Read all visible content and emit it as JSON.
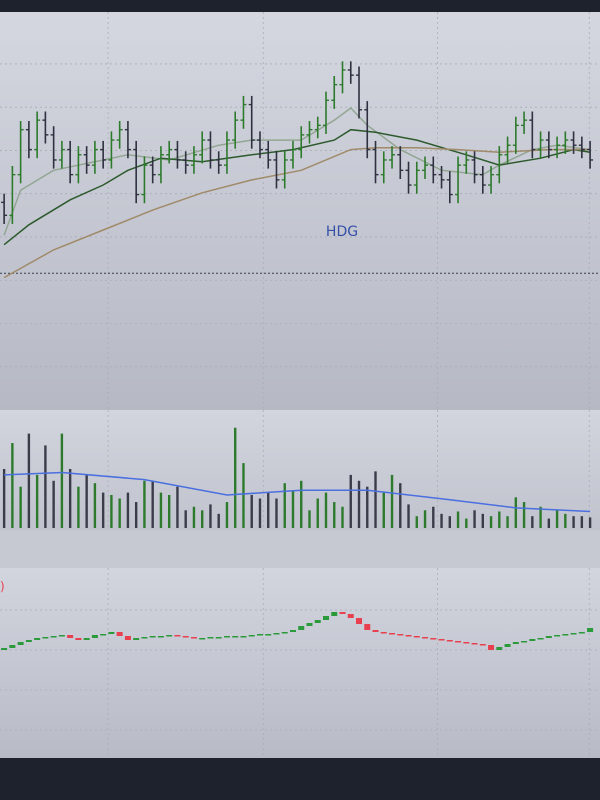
{
  "chart_data": [
    {
      "type": "ohlc",
      "annotation": "HDG",
      "xlim": [
        -0.5,
        72.2
      ],
      "ylim": [
        0,
        46
      ],
      "yticks": [
        5,
        10,
        15,
        20,
        25,
        30,
        35,
        40
      ],
      "xticks": [
        12.6,
        31.4,
        52.5,
        70.9
      ],
      "grid": true,
      "up_color": "#2d7a2d",
      "down_color": "#2f3140",
      "reference_line": 15.8,
      "reference_color": "#3a3d4a",
      "open": [
        24.0,
        22.5,
        27.2,
        32.4,
        30.1,
        33.5,
        31.8,
        28.9,
        30.1,
        27.2,
        29.5,
        28.3,
        30.1,
        28.9,
        31.2,
        32.4,
        30.1,
        24.9,
        28.3,
        27.2,
        29.5,
        30.1,
        28.9,
        28.3,
        29.5,
        31.2,
        28.9,
        28.3,
        31.2,
        33.5,
        35.3,
        31.2,
        30.1,
        28.9,
        26.6,
        28.9,
        30.1,
        31.8,
        32.4,
        32.9,
        35.8,
        37.6,
        39.3,
        38.7,
        34.7,
        30.1,
        27.2,
        28.9,
        29.5,
        27.7,
        26.0,
        27.7,
        28.3,
        27.2,
        26.6,
        24.9,
        28.3,
        28.9,
        27.2,
        26.0,
        27.2,
        29.5,
        30.6,
        32.9,
        33.5,
        30.1,
        31.2,
        30.1,
        30.6,
        31.2,
        30.6,
        30.1
      ],
      "high": [
        25.0,
        28.2,
        33.4,
        33.4,
        34.5,
        34.5,
        32.8,
        31.1,
        31.1,
        30.5,
        30.5,
        31.1,
        31.1,
        32.2,
        33.4,
        33.4,
        31.1,
        29.3,
        29.3,
        30.5,
        31.1,
        31.1,
        29.9,
        30.5,
        32.2,
        32.2,
        29.9,
        32.2,
        34.5,
        36.3,
        36.3,
        32.2,
        31.1,
        29.9,
        29.9,
        31.1,
        32.8,
        33.4,
        33.9,
        36.8,
        38.6,
        40.3,
        40.3,
        39.7,
        35.7,
        31.1,
        29.9,
        30.5,
        30.5,
        28.7,
        28.7,
        29.3,
        29.3,
        28.2,
        27.6,
        29.3,
        29.9,
        29.9,
        28.2,
        28.2,
        30.5,
        31.6,
        33.9,
        34.5,
        34.5,
        32.2,
        32.2,
        31.6,
        32.2,
        32.2,
        31.6,
        31.1
      ],
      "low": [
        21.5,
        21.5,
        26.2,
        29.1,
        29.1,
        30.8,
        27.9,
        27.9,
        26.2,
        26.2,
        27.3,
        27.3,
        27.9,
        27.9,
        30.2,
        29.1,
        23.9,
        23.9,
        26.2,
        26.2,
        28.5,
        27.9,
        27.3,
        27.3,
        28.5,
        27.9,
        27.3,
        27.3,
        30.2,
        32.5,
        30.2,
        29.1,
        27.9,
        25.6,
        25.6,
        27.9,
        29.1,
        30.8,
        31.4,
        31.9,
        34.8,
        36.6,
        37.7,
        33.7,
        29.1,
        26.2,
        26.2,
        27.9,
        26.7,
        25.0,
        25.0,
        26.7,
        26.2,
        25.6,
        23.9,
        23.9,
        27.3,
        26.2,
        25.0,
        25.0,
        26.2,
        28.5,
        29.6,
        31.9,
        29.1,
        29.1,
        29.1,
        29.1,
        29.6,
        29.6,
        29.1,
        27.9
      ],
      "close": [
        22.5,
        27.2,
        32.4,
        30.1,
        33.5,
        31.8,
        28.9,
        30.1,
        27.2,
        29.5,
        28.3,
        30.1,
        28.9,
        31.2,
        32.4,
        30.1,
        24.9,
        28.3,
        27.2,
        29.5,
        30.1,
        28.9,
        28.3,
        29.5,
        31.2,
        28.9,
        28.3,
        31.2,
        33.5,
        35.3,
        31.2,
        30.1,
        28.9,
        26.6,
        28.9,
        30.1,
        31.8,
        32.4,
        32.9,
        35.8,
        37.6,
        39.3,
        38.7,
        34.7,
        30.1,
        27.2,
        28.9,
        29.5,
        27.7,
        26.0,
        27.7,
        28.3,
        27.2,
        26.6,
        24.9,
        28.3,
        28.9,
        27.2,
        26.0,
        27.2,
        29.5,
        30.6,
        32.9,
        33.5,
        30.1,
        31.2,
        30.1,
        30.6,
        31.2,
        30.6,
        30.1,
        28.9
      ],
      "lines": [
        {
          "color": "#93a693",
          "x": [
            0,
            2,
            6,
            12,
            15,
            20,
            26,
            30,
            36,
            40,
            42,
            44,
            48,
            53,
            58,
            60,
            64,
            67,
            71
          ],
          "values": [
            20.2,
            25.4,
            27.7,
            28.9,
            29.5,
            28.9,
            30.6,
            31.2,
            31.2,
            33.5,
            34.9,
            32.9,
            30.1,
            27.7,
            27.2,
            28.3,
            30.1,
            30.6,
            30.1
          ]
        },
        {
          "color": "#2d5a2d",
          "x": [
            0,
            3,
            8,
            12,
            15,
            19,
            24,
            30,
            35,
            40,
            42,
            45,
            50,
            56,
            60,
            65,
            69,
            71
          ],
          "values": [
            19.1,
            21.4,
            24.3,
            26.0,
            27.7,
            29.1,
            28.7,
            29.5,
            30.1,
            31.2,
            32.4,
            32.1,
            31.2,
            29.5,
            28.3,
            29.1,
            30.1,
            29.8
          ]
        },
        {
          "color": "#a08a6a",
          "x": [
            0,
            6,
            12,
            18,
            24,
            30,
            36,
            42,
            45,
            50,
            55,
            60,
            66,
            71
          ],
          "values": [
            15.3,
            18.5,
            20.8,
            23.1,
            25.1,
            26.6,
            27.7,
            30.1,
            30.3,
            30.3,
            30.1,
            29.8,
            30.1,
            30.1
          ]
        }
      ]
    },
    {
      "type": "bar",
      "xlim": [
        -0.5,
        72.2
      ],
      "ylim": [
        0,
        100
      ],
      "xticks": [
        12.6,
        31.4,
        52.5,
        70.9
      ],
      "up_color": "#2d7a2d",
      "down_color": "#3a3c4a",
      "values": [
        50,
        72,
        35,
        80,
        45,
        70,
        40,
        80,
        50,
        35,
        45,
        38,
        30,
        28,
        25,
        30,
        22,
        40,
        40,
        30,
        28,
        35,
        15,
        18,
        15,
        20,
        12,
        22,
        85,
        55,
        28,
        25,
        30,
        25,
        38,
        32,
        40,
        15,
        25,
        30,
        22,
        18,
        45,
        40,
        35,
        48,
        30,
        45,
        38,
        20,
        10,
        15,
        18,
        12,
        10,
        14,
        8,
        15,
        12,
        10,
        14,
        10,
        26,
        22,
        10,
        18,
        8,
        15,
        12,
        10,
        10,
        9
      ],
      "lines": [
        {
          "color": "#4a6fe0",
          "x": [
            0,
            7,
            17,
            27,
            36,
            44,
            54,
            62,
            71
          ],
          "values": [
            45,
            47,
            41,
            28,
            32,
            32,
            24,
            17,
            14
          ]
        }
      ]
    },
    {
      "type": "candlestick",
      "label": ")",
      "xlim": [
        -0.5,
        72.2
      ],
      "ylim": [
        0,
        95
      ],
      "yticks": [
        14,
        34,
        54,
        74
      ],
      "xticks": [
        12.6,
        31.4,
        52.5,
        70.9
      ],
      "grid": true,
      "up_color": "#2a9a3a",
      "down_color": "#e8404f",
      "open": [
        54,
        55,
        56.5,
        58,
        59,
        60,
        60.5,
        61,
        61.5,
        60,
        59,
        60,
        61.5,
        62,
        63,
        61,
        59,
        60,
        60.5,
        61,
        61,
        61.5,
        61,
        60.5,
        60,
        60,
        60.5,
        60.5,
        61,
        61,
        61,
        61.5,
        62,
        62,
        62.5,
        63,
        64,
        66,
        67.5,
        69,
        71,
        73,
        72,
        70,
        67,
        64,
        63,
        62.5,
        62,
        61.5,
        61,
        60.5,
        60,
        59.5,
        59,
        58.5,
        58,
        57.5,
        57,
        56.5,
        54,
        55.5,
        57,
        58,
        58.5,
        59.5,
        60,
        61,
        61.5,
        62,
        62.5,
        63
      ],
      "close": [
        55,
        56.5,
        58,
        59,
        60,
        60.5,
        61,
        61.5,
        60,
        59,
        60,
        61.5,
        62,
        63,
        61,
        59,
        60,
        60.5,
        61,
        61,
        61.5,
        61,
        60.5,
        60,
        60,
        60.5,
        60.5,
        61,
        61,
        61,
        61.5,
        62,
        62,
        62.5,
        63,
        64,
        66,
        67.5,
        69,
        71,
        73,
        72,
        70,
        67,
        64,
        63,
        62.5,
        62,
        61.5,
        61,
        60.5,
        60,
        59.5,
        59,
        58.5,
        58,
        57.5,
        57,
        56.5,
        54,
        55.5,
        57,
        58,
        58.5,
        59.5,
        60,
        61,
        61.5,
        62,
        62.5,
        63,
        65
      ]
    }
  ]
}
